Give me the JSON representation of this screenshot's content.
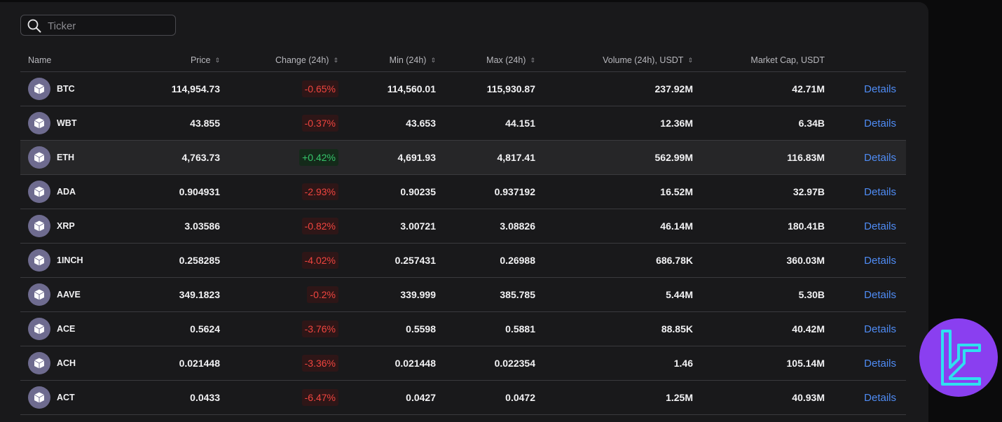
{
  "search": {
    "placeholder": "Ticker",
    "value": ""
  },
  "columns": {
    "name": "Name",
    "price": "Price",
    "change": "Change (24h)",
    "min": "Min (24h)",
    "max": "Max (24h)",
    "volume": "Volume (24h), USDT",
    "market_cap": "Market Cap, USDT"
  },
  "details_label": "Details",
  "colors": {
    "negative": "#f0453f",
    "positive": "#36c46a",
    "link": "#4f8cf5",
    "brand": "#8a3ff0",
    "brand_accent": "#2fe0f0"
  },
  "rows": [
    {
      "ticker": "BTC",
      "price": "114,954.73",
      "change": "-0.65%",
      "direction": "neg",
      "min": "114,560.01",
      "max": "115,930.87",
      "volume": "237.92M",
      "market_cap": "42.71M"
    },
    {
      "ticker": "WBT",
      "price": "43.855",
      "change": "-0.37%",
      "direction": "neg",
      "min": "43.653",
      "max": "44.151",
      "volume": "12.36M",
      "market_cap": "6.34B"
    },
    {
      "ticker": "ETH",
      "price": "4,763.73",
      "change": "+0.42%",
      "direction": "pos",
      "min": "4,691.93",
      "max": "4,817.41",
      "volume": "562.99M",
      "market_cap": "116.83M",
      "highlighted": true
    },
    {
      "ticker": "ADA",
      "price": "0.904931",
      "change": "-2.93%",
      "direction": "neg",
      "min": "0.90235",
      "max": "0.937192",
      "volume": "16.52M",
      "market_cap": "32.97B"
    },
    {
      "ticker": "XRP",
      "price": "3.03586",
      "change": "-0.82%",
      "direction": "neg",
      "min": "3.00721",
      "max": "3.08826",
      "volume": "46.14M",
      "market_cap": "180.41B"
    },
    {
      "ticker": "1INCH",
      "price": "0.258285",
      "change": "-4.02%",
      "direction": "neg",
      "min": "0.257431",
      "max": "0.26988",
      "volume": "686.78K",
      "market_cap": "360.03M"
    },
    {
      "ticker": "AAVE",
      "price": "349.1823",
      "change": "-0.2%",
      "direction": "neg",
      "min": "339.999",
      "max": "385.785",
      "volume": "5.44M",
      "market_cap": "5.30B"
    },
    {
      "ticker": "ACE",
      "price": "0.5624",
      "change": "-3.76%",
      "direction": "neg",
      "min": "0.5598",
      "max": "0.5881",
      "volume": "88.85K",
      "market_cap": "40.42M"
    },
    {
      "ticker": "ACH",
      "price": "0.021448",
      "change": "-3.36%",
      "direction": "neg",
      "min": "0.021448",
      "max": "0.022354",
      "volume": "1.46",
      "market_cap": "105.14M"
    },
    {
      "ticker": "ACT",
      "price": "0.0433",
      "change": "-6.47%",
      "direction": "neg",
      "min": "0.0427",
      "max": "0.0472",
      "volume": "1.25M",
      "market_cap": "40.93M"
    }
  ]
}
